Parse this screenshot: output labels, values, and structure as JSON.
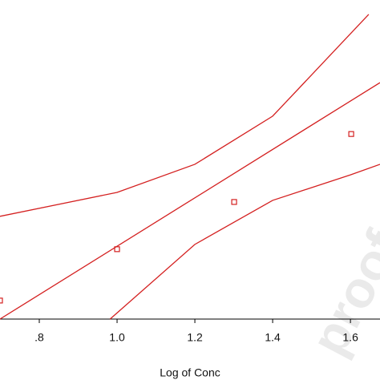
{
  "chart_data": {
    "type": "scatter",
    "x_label": "Log of Conc",
    "watermark": "proof",
    "xlim": [
      0.699,
      1.676
    ],
    "ylim": [
      0,
      100
    ],
    "xticks": [
      {
        "value": 0.8,
        "label": ".8"
      },
      {
        "value": 1.0,
        "label": "1.0"
      },
      1.2,
      1.4,
      1.6
    ],
    "series": [
      {
        "type": "scatter",
        "color": "#d42020",
        "x": [
          0.699,
          1.0,
          1.301,
          1.602
        ],
        "values": [
          5.8,
          21.9,
          36.7,
          58.0
        ]
      },
      {
        "type": "line",
        "color": "#d42020",
        "x": [
          0.699,
          1.676
        ],
        "values": [
          0,
          74.1
        ]
      },
      {
        "type": "line",
        "color": "#d42020",
        "x": [
          0.699,
          1.0,
          1.2,
          1.4,
          1.565,
          1.647
        ],
        "values": [
          32.2,
          39.7,
          48.5,
          63.6,
          84.9,
          95.5
        ]
      },
      {
        "type": "line",
        "color": "#d42020",
        "x": [
          0.982,
          1.2,
          1.4,
          1.6,
          1.676
        ],
        "values": [
          0,
          23.4,
          37.2,
          45.2,
          48.5
        ]
      }
    ]
  }
}
